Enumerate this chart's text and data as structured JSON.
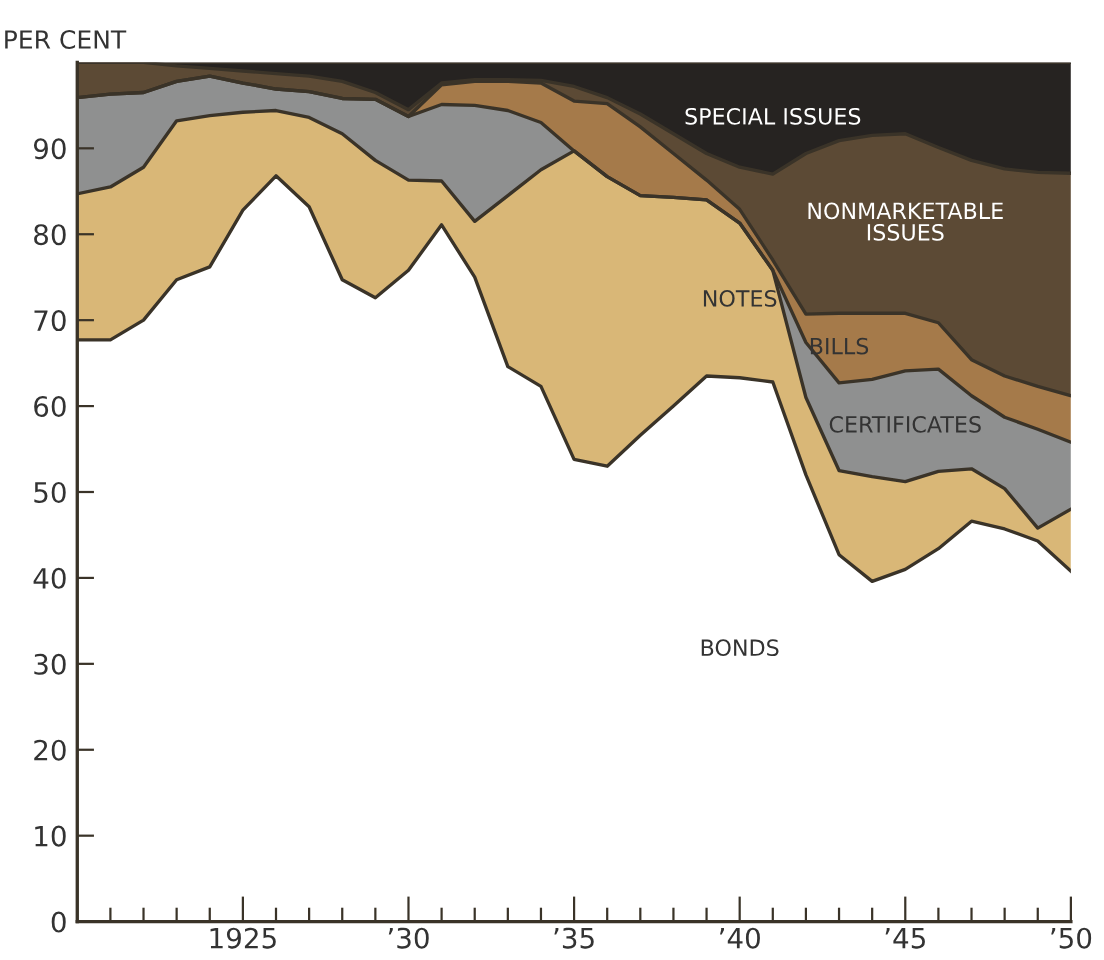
{
  "chart_data": {
    "type": "area",
    "stacked": true,
    "ylabel": "PER CENT",
    "x": [
      1920,
      1921,
      1922,
      1923,
      1924,
      1925,
      1926,
      1927,
      1928,
      1929,
      1930,
      1931,
      1932,
      1933,
      1934,
      1935,
      1936,
      1937,
      1938,
      1939,
      1940,
      1941,
      1942,
      1943,
      1944,
      1945,
      1946,
      1947,
      1948,
      1949,
      1950
    ],
    "series": [
      {
        "name": "BONDS",
        "color": "#ffffff",
        "values": [
          67.7,
          67.7,
          70,
          74.7,
          76.2,
          82.8,
          86.8,
          83.2,
          74.7,
          72.6,
          75.8,
          81.1,
          75,
          64.6,
          62.3,
          53.8,
          53,
          56.6,
          60,
          63.5,
          63.3,
          62.8,
          52,
          42.7,
          39.6,
          41,
          43.4,
          46.6,
          45.7,
          44.3,
          40.8
        ]
      },
      {
        "name": "NOTES",
        "color": "#d9b777",
        "values": [
          17.0,
          17.8,
          17.8,
          18.5,
          17.6,
          11.4,
          7.6,
          10.4,
          17.0,
          16.0,
          10.5,
          5.1,
          6.5,
          19.9,
          25.2,
          35.9,
          33.7,
          27.9,
          24.3,
          20.5,
          18.0,
          13.0,
          9.0,
          9.8,
          12.2,
          10.2,
          9.0,
          6.1,
          4.7,
          1.5,
          7.2
        ]
      },
      {
        "name": "CERTIFICATES",
        "color": "#8f9090",
        "values": [
          11.2,
          10.8,
          8.7,
          4.6,
          4.6,
          3.4,
          2.5,
          3.0,
          4.1,
          7.1,
          7.4,
          8.9,
          13.5,
          9.9,
          5.5,
          0,
          0,
          0,
          0,
          0,
          0,
          0,
          6.4,
          10.2,
          11.3,
          12.9,
          11.9,
          8.5,
          8.3,
          11.5,
          7.8
        ]
      },
      {
        "name": "BILLS",
        "color": "#a57a4a",
        "values": [
          0,
          0,
          0,
          0,
          0,
          0,
          0,
          0,
          0,
          0,
          0,
          2.3,
          2.8,
          3.4,
          4.6,
          5.8,
          8.5,
          8.0,
          5.1,
          2.3,
          1.6,
          1.2,
          3.3,
          8.1,
          7.7,
          6.7,
          5.4,
          4.2,
          4.8,
          5.0,
          5.4
        ]
      },
      {
        "name": "NONMARKETABLE\nISSUES",
        "color": "#5c4a35",
        "values": [
          4.1,
          3.7,
          3.5,
          1.8,
          0.9,
          1.4,
          1.8,
          1.8,
          2.0,
          0.8,
          0.8,
          0.2,
          0.2,
          0.2,
          0.3,
          1.7,
          0.7,
          1.5,
          2.3,
          3.1,
          4.9,
          10.0,
          18.7,
          20.1,
          20.7,
          20.9,
          20.4,
          23.2,
          24.1,
          24.9,
          25.9
        ]
      },
      {
        "name": "SPECIAL ISSUES",
        "color": "#262321",
        "values": [
          0,
          0,
          0,
          0.4,
          0.7,
          1.0,
          1.3,
          1.6,
          2.2,
          3.5,
          5.5,
          2.4,
          2.0,
          2.0,
          2.1,
          2.8,
          4.1,
          6.0,
          8.3,
          10.6,
          12.2,
          13.0,
          10.6,
          9.1,
          8.5,
          8.3,
          9.9,
          11.4,
          12.4,
          12.8,
          12.9
        ]
      }
    ],
    "xlim": [
      1920,
      1950
    ],
    "ylim": [
      0,
      100
    ],
    "xticks": [
      {
        "value": 1921,
        "label": null
      },
      {
        "value": 1922,
        "label": null
      },
      {
        "value": 1923,
        "label": null
      },
      {
        "value": 1924,
        "label": null
      },
      {
        "value": 1925,
        "label": "1925"
      },
      {
        "value": 1926,
        "label": null
      },
      {
        "value": 1927,
        "label": null
      },
      {
        "value": 1928,
        "label": null
      },
      {
        "value": 1929,
        "label": null
      },
      {
        "value": 1930,
        "label": "’30"
      },
      {
        "value": 1931,
        "label": null
      },
      {
        "value": 1932,
        "label": null
      },
      {
        "value": 1933,
        "label": null
      },
      {
        "value": 1934,
        "label": null
      },
      {
        "value": 1935,
        "label": "’35"
      },
      {
        "value": 1936,
        "label": null
      },
      {
        "value": 1937,
        "label": null
      },
      {
        "value": 1938,
        "label": null
      },
      {
        "value": 1939,
        "label": null
      },
      {
        "value": 1940,
        "label": "’40"
      },
      {
        "value": 1941,
        "label": null
      },
      {
        "value": 1942,
        "label": null
      },
      {
        "value": 1943,
        "label": null
      },
      {
        "value": 1944,
        "label": null
      },
      {
        "value": 1945,
        "label": "’45"
      },
      {
        "value": 1946,
        "label": null
      },
      {
        "value": 1947,
        "label": null
      },
      {
        "value": 1948,
        "label": null
      },
      {
        "value": 1949,
        "label": null
      },
      {
        "value": 1950,
        "label": "’50"
      }
    ],
    "yticks": [
      0,
      10,
      20,
      30,
      40,
      50,
      60,
      70,
      80,
      90
    ],
    "grid": false,
    "legend": false
  }
}
